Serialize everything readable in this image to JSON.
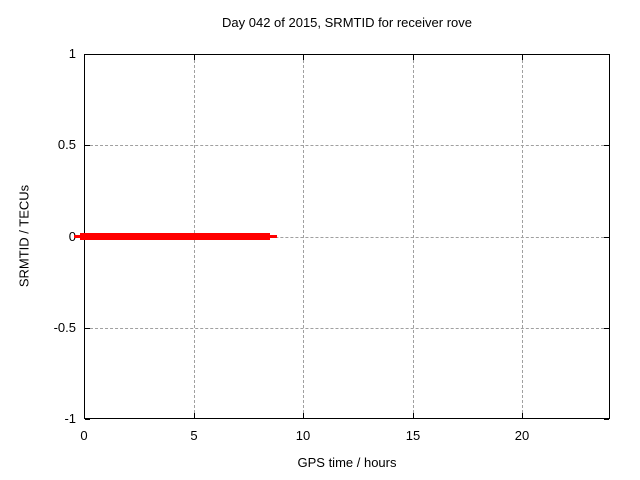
{
  "chart_data": {
    "type": "line",
    "title": "Day 042 of 2015, SRMTID for receiver rove",
    "xlabel": "GPS time / hours",
    "ylabel": "SRMTID / TECUs",
    "xlim": [
      0,
      24
    ],
    "ylim": [
      -1,
      1
    ],
    "xticks": [
      0,
      5,
      10,
      15,
      20
    ],
    "yticks": [
      -1,
      -0.5,
      0,
      0.5,
      1
    ],
    "grid": true,
    "legend": "none",
    "background_color": "#ffffff",
    "axis_color": "#000000",
    "grid_color": "#a0a0a0",
    "series": [
      {
        "name": "SRMTID",
        "color": "#ff0000",
        "value": 0,
        "x_start": 0,
        "x_end_thick": 8.5,
        "x_end_thin": 8.8,
        "description": "constant zero value from 0 h to about 8.5 h, thin tip to about 8.8 h"
      }
    ]
  }
}
